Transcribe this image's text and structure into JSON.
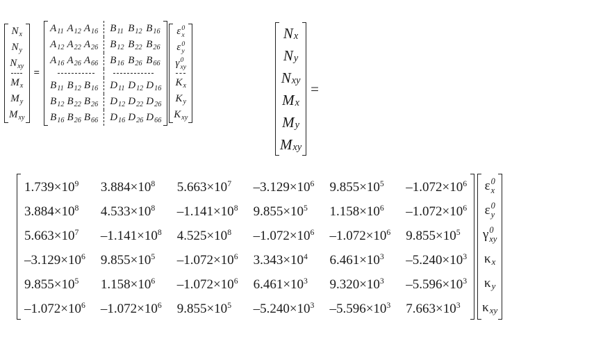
{
  "top": {
    "forces": [
      {
        "base": "N",
        "sub": "x"
      },
      {
        "base": "N",
        "sub": "y"
      },
      {
        "base": "N",
        "sub": "xy"
      },
      {
        "base": "M",
        "sub": "x"
      },
      {
        "base": "M",
        "sub": "y"
      },
      {
        "base": "M",
        "sub": "xy"
      }
    ],
    "equals": "=",
    "stiffness": [
      [
        {
          "base": "A",
          "sub": "11"
        },
        {
          "base": "A",
          "sub": "12"
        },
        {
          "base": "A",
          "sub": "16"
        },
        {
          "base": "B",
          "sub": "11"
        },
        {
          "base": "B",
          "sub": "12"
        },
        {
          "base": "B",
          "sub": "16"
        }
      ],
      [
        {
          "base": "A",
          "sub": "12"
        },
        {
          "base": "A",
          "sub": "22"
        },
        {
          "base": "A",
          "sub": "26"
        },
        {
          "base": "B",
          "sub": "12"
        },
        {
          "base": "B",
          "sub": "22"
        },
        {
          "base": "B",
          "sub": "26"
        }
      ],
      [
        {
          "base": "A",
          "sub": "16"
        },
        {
          "base": "A",
          "sub": "26"
        },
        {
          "base": "A",
          "sub": "66"
        },
        {
          "base": "B",
          "sub": "16"
        },
        {
          "base": "B",
          "sub": "26"
        },
        {
          "base": "B",
          "sub": "66"
        }
      ],
      [
        {
          "base": "B",
          "sub": "11"
        },
        {
          "base": "B",
          "sub": "12"
        },
        {
          "base": "B",
          "sub": "16"
        },
        {
          "base": "D",
          "sub": "11"
        },
        {
          "base": "D",
          "sub": "12"
        },
        {
          "base": "D",
          "sub": "16"
        }
      ],
      [
        {
          "base": "B",
          "sub": "12"
        },
        {
          "base": "B",
          "sub": "22"
        },
        {
          "base": "B",
          "sub": "26"
        },
        {
          "base": "D",
          "sub": "12"
        },
        {
          "base": "D",
          "sub": "22"
        },
        {
          "base": "D",
          "sub": "26"
        }
      ],
      [
        {
          "base": "B",
          "sub": "16"
        },
        {
          "base": "B",
          "sub": "26"
        },
        {
          "base": "B",
          "sub": "66"
        },
        {
          "base": "D",
          "sub": "16"
        },
        {
          "base": "D",
          "sub": "26"
        },
        {
          "base": "D",
          "sub": "66"
        }
      ]
    ],
    "strains": [
      {
        "base": "ε",
        "sub": "x",
        "sup": "0"
      },
      {
        "base": "ε",
        "sub": "y",
        "sup": "0"
      },
      {
        "base": "γ",
        "sub": "xy",
        "sup": "0"
      },
      {
        "base": "K",
        "sub": "x"
      },
      {
        "base": "K",
        "sub": "y"
      },
      {
        "base": "K",
        "sub": "xy"
      }
    ]
  },
  "right": {
    "forces": [
      {
        "base": "N",
        "sub": "x"
      },
      {
        "base": "N",
        "sub": "y"
      },
      {
        "base": "N",
        "sub": "xy"
      },
      {
        "base": "M",
        "sub": "x"
      },
      {
        "base": "M",
        "sub": "y"
      },
      {
        "base": "M",
        "sub": "xy"
      }
    ],
    "equals": "="
  },
  "bottom": {
    "times": "×10",
    "matrix": [
      [
        {
          "m": "1.739",
          "e": "9"
        },
        {
          "m": "3.884",
          "e": "8"
        },
        {
          "m": "5.663",
          "e": "7"
        },
        {
          "m": "–3.129",
          "e": "6"
        },
        {
          "m": "9.855",
          "e": "5"
        },
        {
          "m": "–1.072",
          "e": "6"
        }
      ],
      [
        {
          "m": "3.884",
          "e": "8"
        },
        {
          "m": "4.533",
          "e": "8"
        },
        {
          "m": "–1.141",
          "e": "8"
        },
        {
          "m": "9.855",
          "e": "5"
        },
        {
          "m": "1.158",
          "e": "6"
        },
        {
          "m": "–1.072",
          "e": "6"
        }
      ],
      [
        {
          "m": "5.663",
          "e": "7"
        },
        {
          "m": "–1.141",
          "e": "8"
        },
        {
          "m": "4.525",
          "e": "8"
        },
        {
          "m": "–1.072",
          "e": "6"
        },
        {
          "m": "–1.072",
          "e": "6"
        },
        {
          "m": "9.855",
          "e": "5"
        }
      ],
      [
        {
          "m": "–3.129",
          "e": "6"
        },
        {
          "m": "9.855",
          "e": "5"
        },
        {
          "m": "–1.072",
          "e": "6"
        },
        {
          "m": "3.343",
          "e": "4"
        },
        {
          "m": "6.461",
          "e": "3"
        },
        {
          "m": "–5.240",
          "e": "3"
        }
      ],
      [
        {
          "m": "9.855",
          "e": "5"
        },
        {
          "m": "1.158",
          "e": "6"
        },
        {
          "m": "–1.072",
          "e": "6"
        },
        {
          "m": "6.461",
          "e": "3"
        },
        {
          "m": "9.320",
          "e": "3"
        },
        {
          "m": "–5.596",
          "e": "3"
        }
      ],
      [
        {
          "m": "–1.072",
          "e": "6"
        },
        {
          "m": "–1.072",
          "e": "6"
        },
        {
          "m": "9.855",
          "e": "5"
        },
        {
          "m": "–5.240",
          "e": "3"
        },
        {
          "m": "–5.596",
          "e": "3"
        },
        {
          "m": "7.663",
          "e": "3"
        }
      ]
    ],
    "strains": [
      {
        "base": "ε",
        "sub": "x",
        "sup": "0"
      },
      {
        "base": "ε",
        "sub": "y",
        "sup": "0"
      },
      {
        "base": "γ",
        "sub": "xy",
        "sup": "0"
      },
      {
        "base": "κ",
        "sub": "x"
      },
      {
        "base": "κ",
        "sub": "y"
      },
      {
        "base": "κ",
        "sub": "xy"
      }
    ]
  }
}
